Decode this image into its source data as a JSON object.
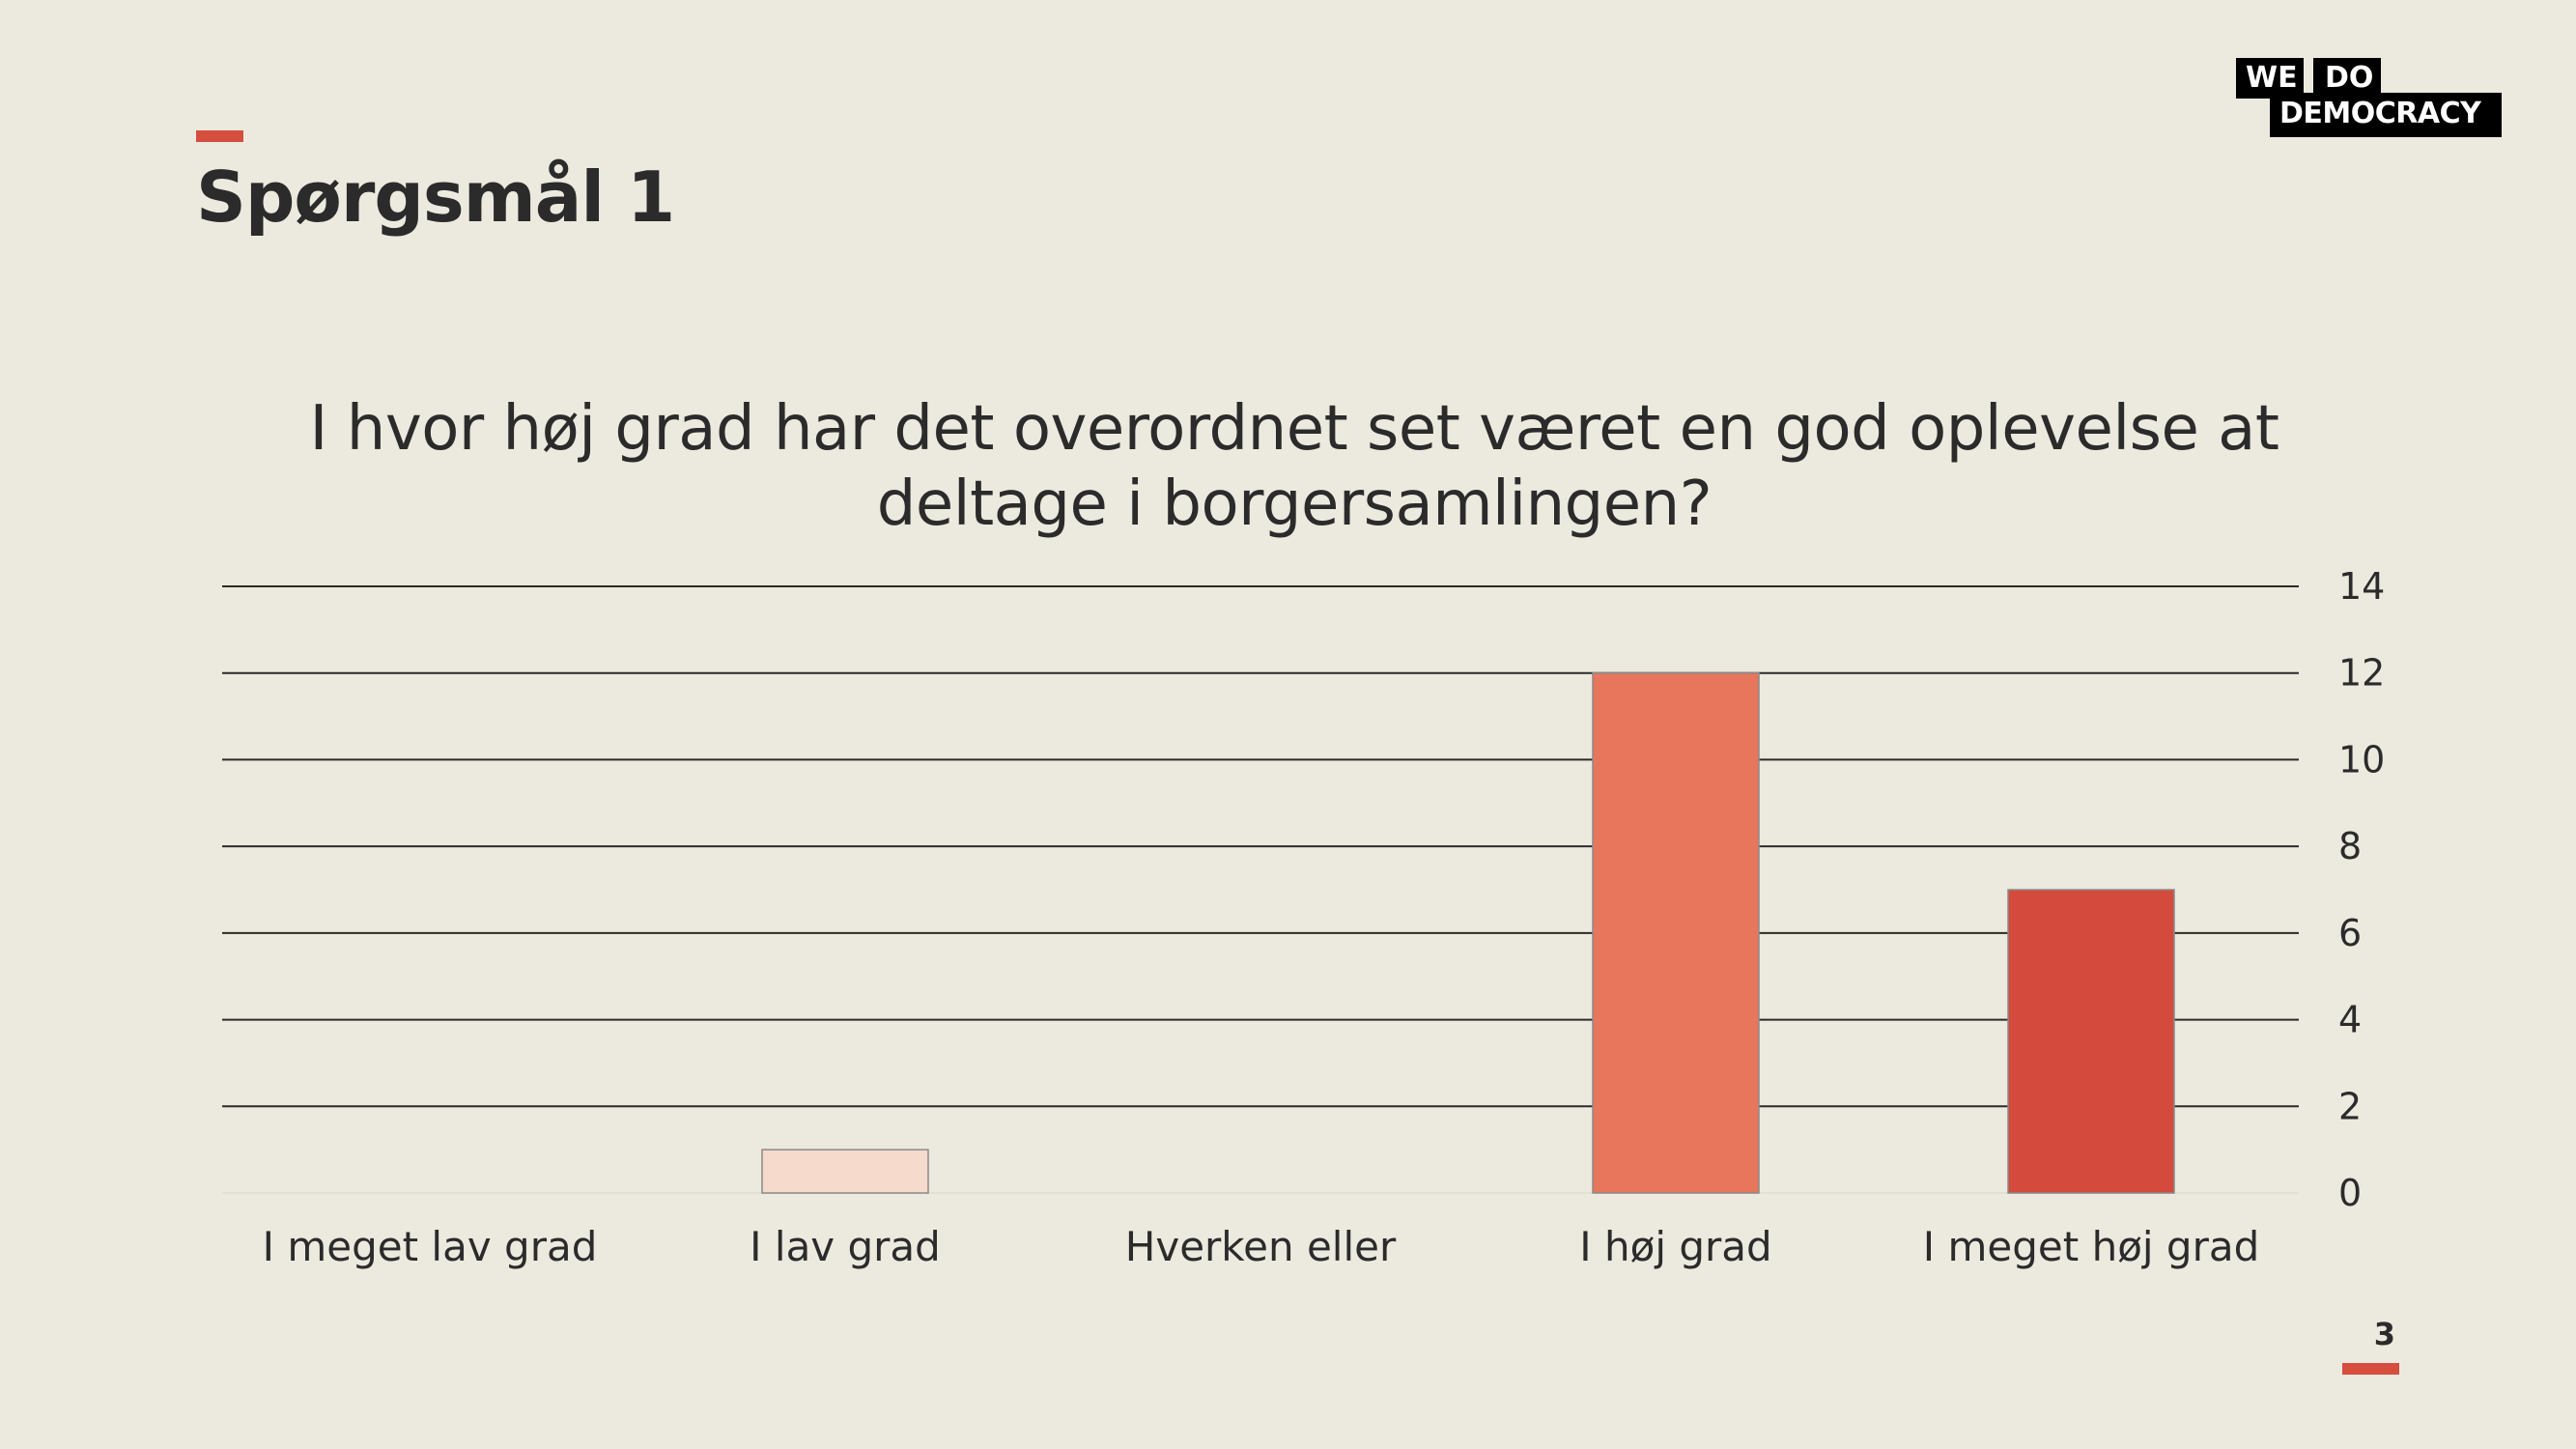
{
  "slide": {
    "title": "Spørgsmål 1",
    "page_number": "3"
  },
  "logo": {
    "line1a": "WE",
    "line1b": "DO",
    "line2": "DEMOCRACY"
  },
  "colors": {
    "accent": "#D64E3D",
    "background": "#ECE9DF"
  },
  "chart_data": {
    "type": "bar",
    "title": "I hvor høj grad har det overordnet set været en god oplevelse at deltage i borgersamlingen?",
    "categories": [
      "I meget lav grad",
      "I lav grad",
      "Hverken eller",
      "I høj grad",
      "I meget høj grad"
    ],
    "values": [
      0,
      1,
      0,
      12,
      7
    ],
    "bar_colors": [
      "#F6DACB",
      "#F6DACB",
      "#EFA58D",
      "#E8765C",
      "#D44A3C"
    ],
    "ylim": [
      0,
      14
    ],
    "yticks": [
      0,
      2,
      4,
      6,
      8,
      10,
      12,
      14
    ],
    "y_axis_position": "right",
    "grid": true,
    "legend": "none"
  }
}
